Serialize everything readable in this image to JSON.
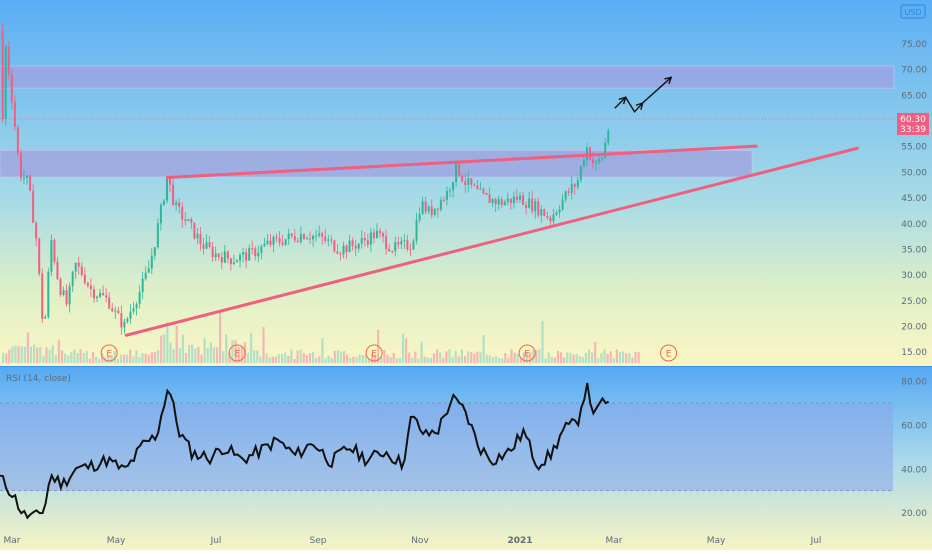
{
  "chart_data": {
    "type": "candlestick",
    "currency_badge": "USD",
    "x_axis_labels": [
      "Mar",
      "May",
      "Jul",
      "Sep",
      "Nov",
      "2021",
      "Mar",
      "May",
      "Jul"
    ],
    "price_axis": {
      "ticks": [
        75.0,
        70.0,
        65.0,
        55.0,
        50.0,
        45.0,
        40.0,
        35.0,
        30.0,
        25.0,
        20.0,
        15.0
      ],
      "range": [
        13,
        78
      ]
    },
    "current_price": {
      "value": 60.3,
      "label": "60.30",
      "countdown": "33:39"
    },
    "resistance_zones": [
      {
        "from": 66.3,
        "to": 70.6,
        "x_start": "Mar 2020",
        "x_end": "Jul 2021"
      },
      {
        "from": 49.0,
        "to": 54.2,
        "x_start": "Mar 2020",
        "x_end": "Jun 2021"
      }
    ],
    "trendlines": [
      {
        "name": "upper",
        "points": [
          [
            0.187,
            48.9
          ],
          [
            0.845,
            55.0
          ]
        ]
      },
      {
        "name": "lower",
        "points": [
          [
            0.141,
            18.2
          ],
          [
            0.958,
            54.6
          ]
        ]
      }
    ],
    "projection_path": {
      "points": [
        [
          0.687,
          62.4
        ],
        [
          0.699,
          64.5
        ],
        [
          0.709,
          61.7
        ],
        [
          0.718,
          63.4
        ],
        [
          0.75,
          68.4
        ]
      ]
    },
    "earnings_markers": [
      {
        "label": "E",
        "x": 0.122
      },
      {
        "label": "E",
        "x": 0.265
      },
      {
        "label": "E",
        "x": 0.418
      },
      {
        "label": "E",
        "x": 0.589
      },
      {
        "label": "E",
        "x": 0.747
      }
    ],
    "candles_key": [
      [
        0.004,
        77.5
      ],
      [
        0.013,
        65
      ],
      [
        0.022,
        50
      ],
      [
        0.031,
        48
      ],
      [
        0.04,
        38
      ],
      [
        0.049,
        18
      ],
      [
        0.057,
        37
      ],
      [
        0.066,
        28
      ],
      [
        0.075,
        24
      ],
      [
        0.084,
        32
      ],
      [
        0.093,
        30
      ],
      [
        0.102,
        27
      ],
      [
        0.112,
        26
      ],
      [
        0.121,
        25
      ],
      [
        0.13,
        22
      ],
      [
        0.139,
        20
      ],
      [
        0.148,
        24
      ],
      [
        0.157,
        27
      ],
      [
        0.166,
        31
      ],
      [
        0.175,
        38
      ],
      [
        0.187,
        49
      ],
      [
        0.196,
        43
      ],
      [
        0.21,
        40
      ],
      [
        0.225,
        36
      ],
      [
        0.24,
        34
      ],
      [
        0.26,
        33
      ],
      [
        0.28,
        34
      ],
      [
        0.3,
        36
      ],
      [
        0.32,
        37
      ],
      [
        0.34,
        38
      ],
      [
        0.36,
        37
      ],
      [
        0.38,
        35
      ],
      [
        0.4,
        36
      ],
      [
        0.42,
        38
      ],
      [
        0.44,
        35
      ],
      [
        0.46,
        36
      ],
      [
        0.47,
        44
      ],
      [
        0.48,
        42
      ],
      [
        0.5,
        46
      ],
      [
        0.51,
        51
      ],
      [
        0.52,
        48
      ],
      [
        0.54,
        45
      ],
      [
        0.56,
        44
      ],
      [
        0.58,
        45
      ],
      [
        0.6,
        43
      ],
      [
        0.615,
        41
      ],
      [
        0.63,
        45
      ],
      [
        0.645,
        48
      ],
      [
        0.655,
        55
      ],
      [
        0.665,
        51
      ],
      [
        0.673,
        53
      ],
      [
        0.682,
        60.3
      ]
    ],
    "rsi": {
      "label": "RSI (14, close)",
      "ticks": [
        80.0,
        60.0,
        40.0,
        20.0
      ],
      "range": [
        13,
        85
      ],
      "band": [
        30,
        70
      ],
      "key": [
        [
          0.0,
          36
        ],
        [
          0.015,
          28
        ],
        [
          0.026,
          19
        ],
        [
          0.04,
          18
        ],
        [
          0.05,
          22
        ],
        [
          0.056,
          37
        ],
        [
          0.07,
          33
        ],
        [
          0.085,
          40
        ],
        [
          0.1,
          41
        ],
        [
          0.12,
          44
        ],
        [
          0.14,
          39
        ],
        [
          0.16,
          51
        ],
        [
          0.175,
          55
        ],
        [
          0.188,
          78
        ],
        [
          0.2,
          57
        ],
        [
          0.215,
          47
        ],
        [
          0.235,
          45
        ],
        [
          0.25,
          50
        ],
        [
          0.27,
          44
        ],
        [
          0.29,
          48
        ],
        [
          0.31,
          53
        ],
        [
          0.33,
          46
        ],
        [
          0.35,
          52
        ],
        [
          0.37,
          43
        ],
        [
          0.39,
          50
        ],
        [
          0.41,
          44
        ],
        [
          0.43,
          48
        ],
        [
          0.45,
          42
        ],
        [
          0.46,
          64
        ],
        [
          0.475,
          55
        ],
        [
          0.49,
          58
        ],
        [
          0.505,
          72
        ],
        [
          0.52,
          66
        ],
        [
          0.535,
          50
        ],
        [
          0.55,
          44
        ],
        [
          0.57,
          48
        ],
        [
          0.585,
          57
        ],
        [
          0.6,
          42
        ],
        [
          0.615,
          46
        ],
        [
          0.63,
          58
        ],
        [
          0.645,
          61
        ],
        [
          0.655,
          78
        ],
        [
          0.665,
          64
        ],
        [
          0.675,
          72
        ],
        [
          0.682,
          68
        ]
      ]
    }
  }
}
